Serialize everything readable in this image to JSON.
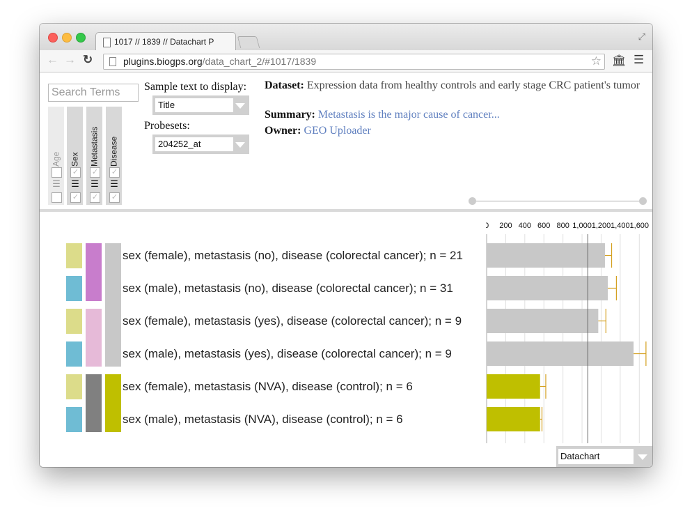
{
  "browser": {
    "tab_title": "1017 // 1839 // Datachart P",
    "url_host": "plugins.biogps.org",
    "url_path": "/data_chart_2/#1017/1839",
    "icons": {
      "back": "arrow-left-icon",
      "forward": "arrow-right-icon",
      "reload": "reload-icon",
      "star": "star-icon",
      "bank": "bank-icon",
      "menu": "hamburger-menu-icon",
      "fullscreen": "fullscreen-icon"
    }
  },
  "search": {
    "placeholder": "Search Terms"
  },
  "facets": [
    {
      "label": "Age",
      "disabled": true
    },
    {
      "label": "Sex",
      "disabled": false
    },
    {
      "label": "Metastasis",
      "disabled": false
    },
    {
      "label": "Disease",
      "disabled": false
    }
  ],
  "controls": {
    "sample_text_label": "Sample text to display:",
    "sample_text_value": "Title",
    "probesets_label": "Probesets:",
    "probeset_value": "204252_at"
  },
  "dataset": {
    "dataset_label": "Dataset:",
    "dataset_text": "Expression data from healthy controls and early stage CRC patient's tumor",
    "summary_label": "Summary:",
    "summary_text": "Metastasis is the major cause of cancer...",
    "owner_label": "Owner:",
    "owner_text": "GEO Uploader"
  },
  "colors": {
    "female": "#dcdc8a",
    "male": "#6fbcd4",
    "metastasis_no": "#c87dcc",
    "metastasis_yes": "#e6bad8",
    "metastasis_nva": "#808080",
    "disease_crc": "#c8c8c8",
    "disease_control": "#bfbf00",
    "bar_grey": "#c8c8c8",
    "bar_control": "#bfbf00",
    "error_bar": "#d4a020"
  },
  "rows": [
    {
      "label": "sex (female), metastasis (no), disease (colorectal cancer); n = 21"
    },
    {
      "label": "sex (male), metastasis (no), disease (colorectal cancer); n = 31"
    },
    {
      "label": "sex (female), metastasis (yes), disease (colorectal cancer); n = 9"
    },
    {
      "label": "sex (male), metastasis (yes), disease (colorectal cancer); n = 9"
    },
    {
      "label": "sex (female), metastasis (NVA), disease (control); n = 6"
    },
    {
      "label": "sex (male), metastasis (NVA), disease (control); n = 6"
    }
  ],
  "chart_data": {
    "type": "bar",
    "orientation": "horizontal",
    "categories": [
      "sex (female), metastasis (no), disease (colorectal cancer); n = 21",
      "sex (male), metastasis (no), disease (colorectal cancer); n = 31",
      "sex (female), metastasis (yes), disease (colorectal cancer); n = 9",
      "sex (male), metastasis (yes), disease (colorectal cancer); n = 9",
      "sex (female), metastasis (NVA), disease (control); n = 6",
      "sex (male), metastasis (NVA), disease (control); n = 6"
    ],
    "values": [
      1240,
      1270,
      1170,
      1540,
      560,
      560
    ],
    "errors": [
      70,
      90,
      80,
      130,
      60,
      20
    ],
    "bar_colors": [
      "#c8c8c8",
      "#c8c8c8",
      "#c8c8c8",
      "#c8c8c8",
      "#bfbf00",
      "#bfbf00"
    ],
    "xticks": [
      0,
      200,
      400,
      600,
      800,
      1000,
      1200,
      1400,
      1600
    ],
    "xtick_labels": [
      "0",
      "200",
      "400",
      "600",
      "800",
      "1,000",
      "1,200",
      "1,400",
      "1,600"
    ],
    "xlim": [
      0,
      1700
    ],
    "reference_line": 1060,
    "grid": true,
    "title": "",
    "xlabel": "",
    "ylabel": ""
  },
  "view_selector": {
    "value": "Datachart"
  }
}
